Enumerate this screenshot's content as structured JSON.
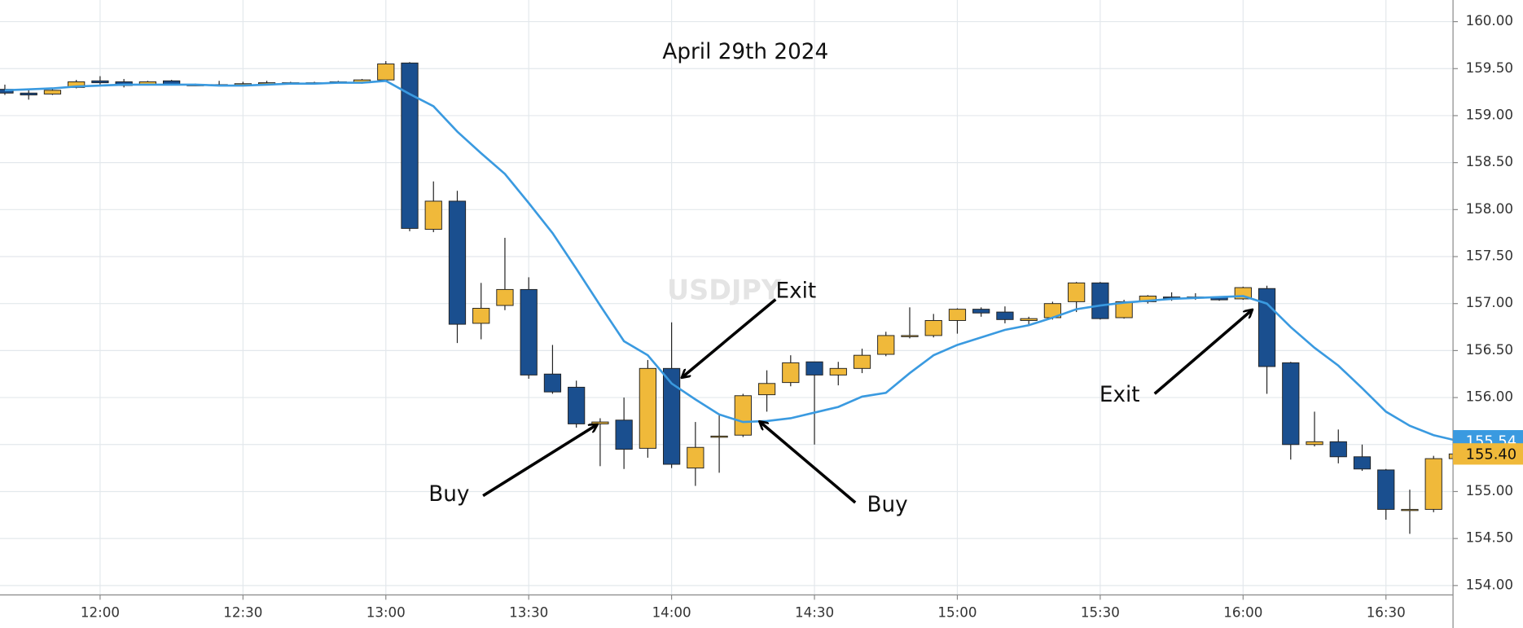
{
  "chart_data": {
    "type": "candlestick",
    "title": "April 29th 2024",
    "watermark": "USDJPY",
    "categories": [
      null,
      null,
      null,
      null,
      "12:00",
      null,
      null,
      null,
      null,
      null,
      "12:30",
      null,
      null,
      null,
      null,
      null,
      "13:00",
      null,
      null,
      null,
      null,
      null,
      "13:30",
      null,
      null,
      null,
      null,
      null,
      "14:00",
      null,
      null,
      null,
      null,
      null,
      "14:30",
      null,
      null,
      null,
      null,
      null,
      "15:00",
      null,
      null,
      null,
      null,
      null,
      "15:30",
      null,
      null,
      null,
      null,
      null,
      "16:00",
      null,
      null,
      null,
      null,
      null,
      "16:30",
      null,
      null,
      null
    ],
    "open": [
      159.28,
      159.24,
      159.23,
      159.3,
      159.37,
      159.36,
      159.33,
      159.37,
      159.33,
      159.33,
      159.34,
      159.35,
      159.35,
      159.35,
      159.36,
      159.35,
      159.38,
      159.56,
      157.79,
      158.09,
      156.79,
      156.98,
      157.15,
      156.25,
      156.11,
      155.72,
      155.76,
      155.46,
      156.31,
      155.25,
      155.58,
      155.6,
      156.03,
      156.16,
      156.38,
      156.24,
      156.31,
      156.46,
      156.65,
      156.66,
      156.82,
      156.94,
      156.91,
      156.82,
      156.85,
      157.02,
      157.22,
      156.85,
      157.02,
      157.07,
      157.07,
      157.07,
      157.05,
      157.16,
      156.37,
      155.5,
      155.53,
      155.37,
      155.23,
      154.8,
      154.81,
      155.35
    ],
    "high": [
      159.33,
      159.27,
      159.29,
      159.38,
      159.42,
      159.39,
      159.37,
      159.38,
      159.34,
      159.37,
      159.36,
      159.37,
      159.36,
      159.36,
      159.37,
      159.39,
      159.58,
      159.57,
      158.3,
      158.2,
      157.22,
      157.7,
      157.28,
      156.56,
      156.18,
      155.78,
      156.0,
      156.4,
      156.8,
      155.74,
      155.83,
      156.04,
      156.29,
      156.45,
      156.38,
      156.38,
      156.52,
      156.7,
      156.96,
      156.89,
      156.95,
      156.96,
      156.97,
      156.86,
      157.02,
      157.23,
      157.23,
      157.04,
      157.09,
      157.12,
      157.11,
      157.08,
      157.18,
      157.19,
      156.38,
      155.85,
      155.66,
      155.5,
      155.24,
      155.02,
      155.38,
      155.42
    ],
    "low": [
      159.22,
      159.17,
      159.22,
      159.29,
      159.33,
      159.3,
      159.32,
      159.32,
      159.32,
      159.32,
      159.33,
      159.34,
      159.34,
      159.34,
      159.35,
      159.34,
      159.37,
      157.77,
      157.76,
      156.58,
      156.62,
      156.93,
      156.2,
      156.04,
      155.68,
      155.27,
      155.24,
      155.36,
      155.25,
      155.06,
      155.2,
      155.58,
      155.85,
      156.12,
      155.5,
      156.13,
      156.26,
      156.44,
      156.63,
      156.64,
      156.68,
      156.86,
      156.79,
      156.78,
      156.83,
      156.91,
      156.83,
      156.84,
      157.0,
      157.03,
      157.04,
      157.03,
      157.04,
      156.04,
      155.34,
      155.48,
      155.3,
      155.22,
      154.7,
      154.55,
      154.78,
      155.33
    ],
    "close": [
      159.24,
      159.22,
      159.27,
      159.36,
      159.35,
      159.32,
      159.36,
      159.33,
      159.33,
      159.33,
      159.34,
      159.35,
      159.35,
      159.35,
      159.36,
      159.38,
      159.55,
      157.8,
      158.09,
      156.78,
      156.95,
      157.15,
      156.24,
      156.06,
      155.72,
      155.74,
      155.45,
      156.31,
      155.29,
      155.47,
      155.59,
      156.02,
      156.15,
      156.37,
      156.24,
      156.31,
      156.45,
      156.66,
      156.66,
      156.82,
      156.94,
      156.9,
      156.83,
      156.84,
      157.0,
      157.22,
      156.84,
      157.02,
      157.08,
      157.06,
      157.06,
      157.04,
      157.17,
      156.33,
      155.5,
      155.53,
      155.37,
      155.24,
      154.81,
      154.81,
      155.35,
      155.4
    ],
    "up_color": "#f0b93a",
    "down_color": "#1a4f8f",
    "ma": {
      "color": "#3a9ae0",
      "values": [
        159.27,
        159.28,
        159.29,
        159.31,
        159.32,
        159.33,
        159.33,
        159.33,
        159.33,
        159.32,
        159.32,
        159.33,
        159.34,
        159.34,
        159.35,
        159.35,
        159.37,
        159.23,
        159.1,
        158.83,
        158.6,
        158.38,
        158.07,
        157.75,
        157.37,
        156.98,
        156.6,
        156.45,
        156.15,
        155.98,
        155.82,
        155.74,
        155.75,
        155.78,
        155.84,
        155.9,
        156.01,
        156.05,
        156.26,
        156.45,
        156.56,
        156.64,
        156.72,
        156.77,
        156.85,
        156.94,
        156.98,
        157.01,
        157.03,
        157.05,
        157.06,
        157.07,
        157.08,
        157.0,
        156.75,
        156.53,
        156.34,
        156.1,
        155.85,
        155.7,
        155.6,
        155.54
      ]
    },
    "ylim": [
      153.9,
      160.23
    ],
    "yticks": [
      {
        "value": 154,
        "label": "154.00"
      },
      {
        "value": 154.5,
        "label": "154.50"
      },
      {
        "value": 155,
        "label": "155.00"
      },
      {
        "value": 155.5,
        "label": "155.50"
      },
      {
        "value": 156,
        "label": "156.00"
      },
      {
        "value": 156.5,
        "label": "156.50"
      },
      {
        "value": 157,
        "label": "157.00"
      },
      {
        "value": 157.5,
        "label": "157.50"
      },
      {
        "value": 158,
        "label": "158.00"
      },
      {
        "value": 158.5,
        "label": "158.50"
      },
      {
        "value": 159,
        "label": "159.00"
      },
      {
        "value": 159.5,
        "label": "159.50"
      },
      {
        "value": 160,
        "label": "160.00"
      }
    ],
    "price_markers": [
      {
        "value": 155.54,
        "label": "155.54",
        "color": "#3a9ae0"
      },
      {
        "value": 155.4,
        "label": "155.40",
        "color": "#f0b93a"
      }
    ],
    "grid": true,
    "annotations": [
      "Exit",
      "Buy",
      "Buy",
      "Exit"
    ]
  }
}
